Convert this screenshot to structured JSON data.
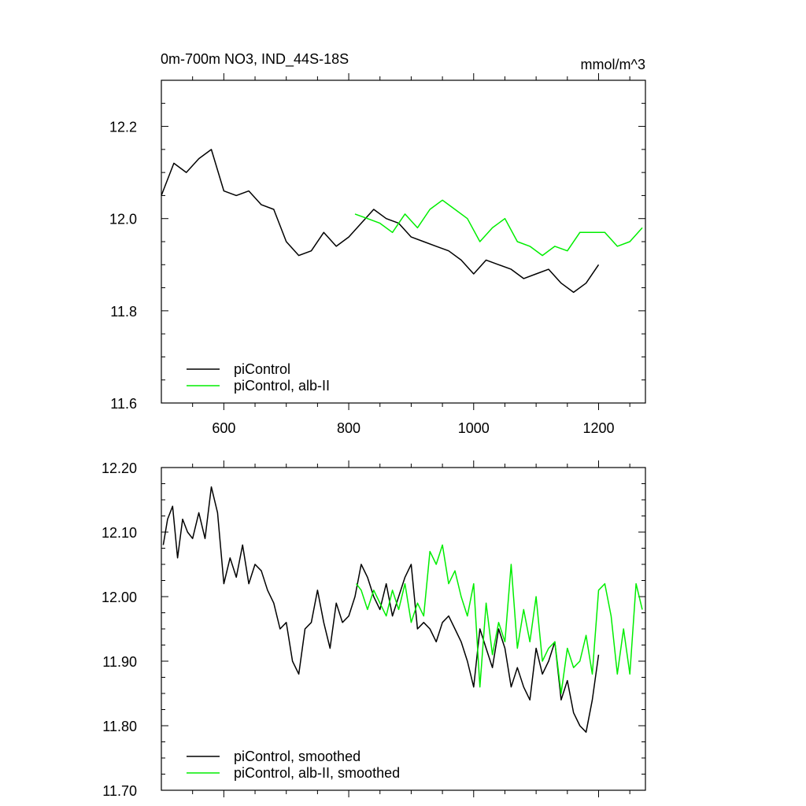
{
  "colors": {
    "black": "#000000",
    "green": "#00ee00"
  },
  "chart_data": [
    {
      "type": "line",
      "title": "0m-700m NO3, IND_44S-18S",
      "units": "mmol/m^3",
      "xlim": [
        500,
        1275
      ],
      "ylim": [
        11.6,
        12.3
      ],
      "xticks": [
        "600",
        "800",
        "1000",
        "1200"
      ],
      "yticks": [
        "11.6",
        "11.8",
        "12.0",
        "12.2"
      ],
      "legend": {
        "placement": "bottom-left",
        "entries": [
          "piControl",
          "piControl, alb-II"
        ]
      },
      "series": [
        {
          "name": "piControl",
          "color": "#000000",
          "x": [
            500,
            520,
            540,
            560,
            580,
            600,
            620,
            640,
            660,
            680,
            700,
            720,
            740,
            760,
            780,
            800,
            820,
            840,
            860,
            880,
            900,
            920,
            940,
            960,
            980,
            1000,
            1020,
            1040,
            1060,
            1080,
            1100,
            1120,
            1140,
            1160,
            1180,
            1200
          ],
          "y": [
            12.05,
            12.12,
            12.1,
            12.13,
            12.15,
            12.06,
            12.05,
            12.06,
            12.03,
            12.02,
            11.95,
            11.92,
            11.93,
            11.97,
            11.94,
            11.96,
            11.99,
            12.02,
            12.0,
            11.99,
            11.96,
            11.95,
            11.94,
            11.93,
            11.91,
            11.88,
            11.91,
            11.9,
            11.89,
            11.87,
            11.88,
            11.89,
            11.86,
            11.84,
            11.86,
            11.9
          ]
        },
        {
          "name": "piControl, alb-II",
          "color": "#00ee00",
          "x": [
            810,
            830,
            850,
            870,
            890,
            910,
            930,
            950,
            970,
            990,
            1010,
            1030,
            1050,
            1070,
            1090,
            1110,
            1130,
            1150,
            1170,
            1190,
            1210,
            1230,
            1250,
            1270
          ],
          "y": [
            12.01,
            12.0,
            11.99,
            11.97,
            12.01,
            11.98,
            12.02,
            12.04,
            12.02,
            12.0,
            11.95,
            11.98,
            12.0,
            11.95,
            11.94,
            11.92,
            11.94,
            11.93,
            11.97,
            11.97,
            11.97,
            11.94,
            11.95,
            11.98
          ]
        }
      ]
    },
    {
      "type": "line",
      "title": "",
      "xlim": [
        500,
        1275
      ],
      "ylim": [
        11.7,
        12.2
      ],
      "xticks": [],
      "yticks": [
        "11.70",
        "11.80",
        "11.90",
        "12.00",
        "12.10",
        "12.20"
      ],
      "legend": {
        "placement": "bottom-left",
        "entries": [
          "piControl, smoothed",
          "piControl, alb-II, smoothed"
        ]
      },
      "series": [
        {
          "name": "piControl, smoothed",
          "color": "#000000",
          "x": [
            503,
            510,
            518,
            526,
            534,
            542,
            550,
            560,
            570,
            580,
            590,
            600,
            610,
            620,
            630,
            640,
            650,
            660,
            670,
            680,
            690,
            700,
            710,
            720,
            730,
            740,
            750,
            760,
            770,
            780,
            790,
            800,
            810,
            820,
            830,
            840,
            850,
            860,
            870,
            880,
            890,
            900,
            910,
            920,
            930,
            940,
            950,
            960,
            970,
            980,
            990,
            1000,
            1010,
            1020,
            1030,
            1040,
            1050,
            1060,
            1070,
            1080,
            1090,
            1100,
            1110,
            1120,
            1130,
            1140,
            1150,
            1160,
            1170,
            1180,
            1190,
            1200
          ],
          "y": [
            12.08,
            12.12,
            12.14,
            12.06,
            12.12,
            12.1,
            12.09,
            12.13,
            12.09,
            12.17,
            12.13,
            12.02,
            12.06,
            12.03,
            12.08,
            12.02,
            12.05,
            12.04,
            12.01,
            11.99,
            11.95,
            11.96,
            11.9,
            11.88,
            11.95,
            11.96,
            12.01,
            11.96,
            11.92,
            11.99,
            11.96,
            11.97,
            12.0,
            12.05,
            12.03,
            12.0,
            11.98,
            12.02,
            11.97,
            12.0,
            12.03,
            12.05,
            11.95,
            11.96,
            11.95,
            11.93,
            11.96,
            11.97,
            11.95,
            11.93,
            11.9,
            11.86,
            11.95,
            11.92,
            11.89,
            11.95,
            11.92,
            11.86,
            11.89,
            11.86,
            11.84,
            11.92,
            11.88,
            11.9,
            11.93,
            11.84,
            11.87,
            11.82,
            11.8,
            11.79,
            11.84,
            11.91
          ]
        },
        {
          "name": "piControl, alb-II, smoothed",
          "color": "#00ee00",
          "x": [
            812,
            820,
            830,
            840,
            850,
            860,
            870,
            880,
            890,
            900,
            910,
            920,
            930,
            940,
            950,
            960,
            970,
            980,
            990,
            1000,
            1010,
            1020,
            1030,
            1040,
            1050,
            1060,
            1070,
            1080,
            1090,
            1100,
            1110,
            1120,
            1130,
            1140,
            1150,
            1160,
            1170,
            1180,
            1190,
            1200,
            1210,
            1220,
            1230,
            1240,
            1250,
            1260,
            1270
          ],
          "y": [
            12.02,
            12.01,
            11.98,
            12.01,
            11.99,
            11.97,
            12.01,
            11.98,
            12.02,
            11.96,
            11.99,
            11.97,
            12.07,
            12.05,
            12.08,
            12.02,
            12.04,
            12.0,
            11.97,
            12.02,
            11.86,
            11.99,
            11.91,
            11.96,
            11.93,
            12.05,
            11.92,
            11.98,
            11.93,
            12.0,
            11.9,
            11.92,
            11.93,
            11.85,
            11.92,
            11.89,
            11.9,
            11.94,
            11.88,
            12.01,
            12.02,
            11.97,
            11.88,
            11.95,
            11.88,
            12.02,
            11.98
          ]
        }
      ]
    }
  ]
}
